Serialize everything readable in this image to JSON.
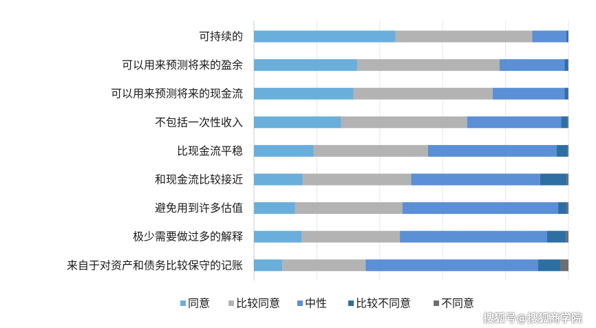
{
  "chart_data": {
    "type": "bar",
    "orientation": "horizontal",
    "stacked": true,
    "percent_stacked": true,
    "categories": [
      "可持续的",
      "可以用来预测将来的盈余",
      "可以用来预测将来的现金流",
      "不包括一次性收入",
      "比现金流平稳",
      "和现金流比较接近",
      "避免用到许多估值",
      "极少需要做过多的解释",
      "来自于对资产和债务比较保守的记账"
    ],
    "series": [
      {
        "name": "同意",
        "color": "#6aaedc",
        "values": [
          45.0,
          33.0,
          31.8,
          27.8,
          19.0,
          15.5,
          13.1,
          15.1,
          9.0
        ]
      },
      {
        "name": "比较同意",
        "color": "#b3b3b3",
        "values": [
          43.5,
          45.5,
          44.5,
          40.2,
          36.5,
          34.5,
          34.1,
          31.3,
          26.5
        ]
      },
      {
        "name": "中性",
        "color": "#5b8fd6",
        "values": [
          10.8,
          20.8,
          23.0,
          30.0,
          41.0,
          41.0,
          49.5,
          46.8,
          54.8
        ]
      },
      {
        "name": "比较不同意",
        "color": "#2e6fa3",
        "values": [
          0.5,
          1.0,
          1.0,
          2.0,
          3.5,
          8.5,
          2.8,
          6.0,
          7.2
        ]
      },
      {
        "name": "不同意",
        "color": "#6e6e6e",
        "values": [
          0.2,
          0.2,
          0.2,
          0.3,
          0.3,
          0.5,
          0.5,
          0.8,
          2.5
        ]
      }
    ],
    "xlim": [
      0,
      100
    ],
    "grid": true,
    "legend_position": "bottom"
  },
  "watermark": "搜狐号@搜狐商学院"
}
